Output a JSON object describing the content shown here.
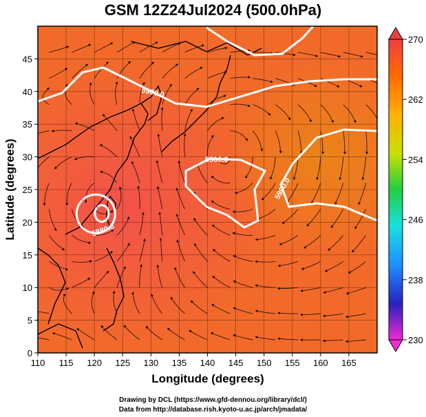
{
  "title": "GSM 12Z24Jul2024 (500.0hPa)",
  "x_axis": {
    "label": "Longitude (degrees)",
    "range": [
      110,
      170
    ],
    "ticks": [
      110,
      115,
      120,
      125,
      130,
      135,
      140,
      145,
      150,
      155,
      160,
      165
    ]
  },
  "y_axis": {
    "label": "Latitude  (degrees)",
    "range": [
      0,
      50
    ],
    "ticks": [
      0,
      5,
      10,
      15,
      20,
      25,
      30,
      35,
      40,
      45
    ]
  },
  "colorbar": {
    "min": 230,
    "max": 270,
    "ticks": [
      270,
      262,
      254,
      246,
      238,
      230
    ],
    "stops": [
      "#f02ad4",
      "#2a20c0",
      "#1e90ff",
      "#18e0e0",
      "#20d040",
      "#c8e000",
      "#ffb000",
      "#ff6a00",
      "#f04040"
    ]
  },
  "field_colors": {
    "warm": "#f25a4a",
    "mid": "#f56a24",
    "cool": "#ec7a1a"
  },
  "contour_labels": [
    "5880.0",
    "5900.0",
    "5900.0",
    "5900.0"
  ],
  "footer": {
    "line1": "Drawing by DCL (https://www.gfd-dennou.org/library/dcl/)",
    "line2": "Data from http://database.rish.kyoto-u.ac.jp/arch/jmadata/"
  }
}
